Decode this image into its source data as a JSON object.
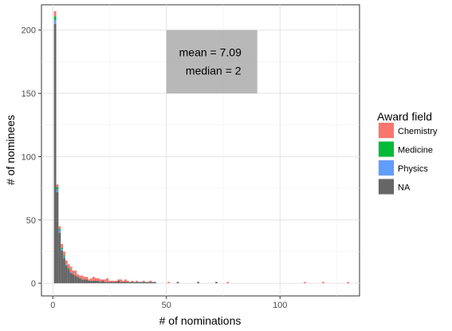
{
  "chart_data": {
    "type": "bar",
    "subtype": "stacked-histogram",
    "xlabel": "# of nominations",
    "ylabel": "# of nominees",
    "xlim": [
      -5,
      135
    ],
    "ylim": [
      -10,
      220
    ],
    "xticks": [
      0,
      50,
      100
    ],
    "yticks": [
      0,
      50,
      100,
      150,
      200
    ],
    "grid": true,
    "legend": {
      "title": "Award field",
      "position": "right",
      "entries": [
        {
          "name": "Chemistry",
          "color": "#F8766D"
        },
        {
          "name": "Medicine",
          "color": "#00BA38"
        },
        {
          "name": "Physics",
          "color": "#619CFF"
        },
        {
          "name": "NA",
          "color": "#666666"
        }
      ]
    },
    "annotation": {
      "lines": [
        "mean =  7.09",
        "median =  2"
      ],
      "box_x": [
        50,
        90
      ],
      "box_y": [
        150,
        200
      ]
    },
    "binwidth": 1,
    "series": [
      {
        "name": "Chemistry",
        "color": "#F8766D",
        "x": [
          1,
          2,
          3,
          4,
          5,
          6,
          7,
          8,
          9,
          10,
          11,
          12,
          13,
          14,
          15,
          16,
          17,
          18,
          19,
          20,
          21,
          22,
          23,
          24,
          25,
          26,
          27,
          28,
          29,
          30,
          31,
          32,
          33,
          35,
          37,
          40,
          43,
          51,
          55,
          64,
          72,
          77,
          111,
          119,
          130
        ],
        "values": [
          4,
          2,
          2,
          3,
          3,
          3,
          3,
          4,
          3,
          4,
          2,
          2,
          3,
          2,
          2,
          1,
          2,
          3,
          2,
          2,
          2,
          1,
          2,
          3,
          1,
          1,
          1,
          1,
          1,
          2,
          1,
          2,
          1,
          1,
          1,
          1,
          1,
          1,
          0,
          0,
          0,
          1,
          1,
          1,
          1
        ]
      },
      {
        "name": "Medicine",
        "color": "#00BA38",
        "x": [
          1,
          2,
          3,
          4,
          5,
          6,
          7,
          8
        ],
        "values": [
          3,
          2,
          1,
          1,
          1,
          0,
          1,
          0
        ]
      },
      {
        "name": "Physics",
        "color": "#619CFF",
        "x": [
          1,
          2,
          3,
          4,
          5,
          6,
          7,
          8
        ],
        "values": [
          3,
          2,
          2,
          1,
          1,
          1,
          0,
          1
        ]
      },
      {
        "name": "NA",
        "color": "#666666",
        "x": [
          1,
          2,
          3,
          4,
          5,
          6,
          7,
          8,
          9,
          10,
          11,
          12,
          13,
          14,
          15,
          16,
          17,
          18,
          19,
          20,
          21,
          22,
          23,
          24,
          25,
          26,
          27,
          28,
          29,
          30,
          31,
          32,
          33,
          34,
          35,
          36,
          37,
          38,
          39,
          40,
          41,
          42,
          43,
          44,
          45,
          55,
          64,
          72
        ],
        "values": [
          205,
          72,
          40,
          26,
          20,
          14,
          11,
          8,
          7,
          6,
          5,
          4,
          3,
          3,
          3,
          2,
          2,
          2,
          2,
          2,
          1,
          2,
          1,
          1,
          1,
          1,
          1,
          1,
          2,
          1,
          1,
          1,
          1,
          1,
          1,
          1,
          1,
          1,
          1,
          1,
          1,
          1,
          1,
          1,
          1,
          1,
          1,
          1
        ]
      }
    ]
  }
}
